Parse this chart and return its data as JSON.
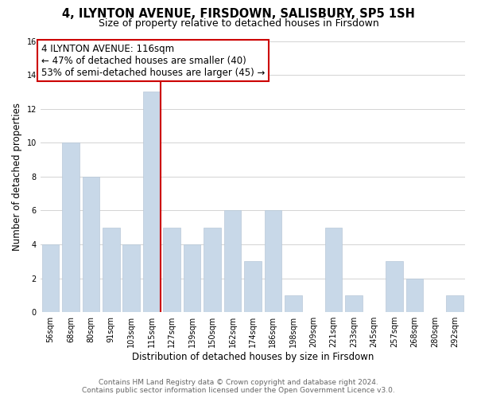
{
  "title": "4, ILYNTON AVENUE, FIRSDOWN, SALISBURY, SP5 1SH",
  "subtitle": "Size of property relative to detached houses in Firsdown",
  "xlabel": "Distribution of detached houses by size in Firsdown",
  "ylabel": "Number of detached properties",
  "categories": [
    "56sqm",
    "68sqm",
    "80sqm",
    "91sqm",
    "103sqm",
    "115sqm",
    "127sqm",
    "139sqm",
    "150sqm",
    "162sqm",
    "174sqm",
    "186sqm",
    "198sqm",
    "209sqm",
    "221sqm",
    "233sqm",
    "245sqm",
    "257sqm",
    "268sqm",
    "280sqm",
    "292sqm"
  ],
  "values": [
    4,
    10,
    8,
    5,
    4,
    13,
    5,
    4,
    5,
    6,
    3,
    6,
    1,
    0,
    5,
    1,
    0,
    3,
    2,
    0,
    1
  ],
  "bar_color": "#c8d8e8",
  "bar_edge_color": "#b8c8d8",
  "highlight_bar_index": 5,
  "highlight_line_color": "#cc0000",
  "annotation_text_line1": "4 ILYNTON AVENUE: 116sqm",
  "annotation_text_line2": "← 47% of detached houses are smaller (40)",
  "annotation_text_line3": "53% of semi-detached houses are larger (45) →",
  "annotation_box_color": "#ffffff",
  "annotation_box_edge_color": "#cc0000",
  "ylim": [
    0,
    16
  ],
  "yticks": [
    0,
    2,
    4,
    6,
    8,
    10,
    12,
    14,
    16
  ],
  "footer_line1": "Contains HM Land Registry data © Crown copyright and database right 2024.",
  "footer_line2": "Contains public sector information licensed under the Open Government Licence v3.0.",
  "grid_color": "#cccccc",
  "background_color": "#ffffff",
  "title_fontsize": 10.5,
  "subtitle_fontsize": 9,
  "axis_label_fontsize": 8.5,
  "tick_fontsize": 7,
  "footer_fontsize": 6.5,
  "annotation_fontsize": 8.5
}
